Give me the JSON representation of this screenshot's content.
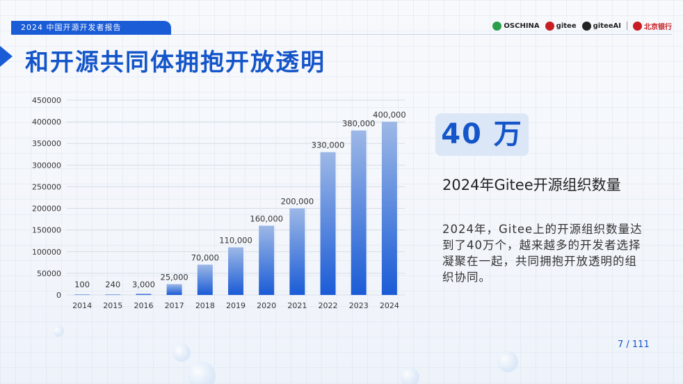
{
  "header": {
    "report_tag": "2024 中国开源开发者报告",
    "logos": [
      {
        "name": "OSCHINA",
        "icon": "oschina-logo",
        "color": "#2b9e4a"
      },
      {
        "name": "gitee",
        "icon": "gitee-logo",
        "color": "#c71d23"
      },
      {
        "name": "giteeAI",
        "icon": "gitee-ai-logo",
        "color": "#222222"
      },
      {
        "name": "北京银行",
        "icon": "bank-of-beijing-logo",
        "color": "#c71d23"
      }
    ]
  },
  "page": {
    "title": "和开源共同体拥抱开放透明",
    "highlight_value": "40 万",
    "subtitle": "2024年Gitee开源组织数量",
    "description": "2024年，Gitee上的开源组织数量达到了40万个，越来越多的开发者选择凝聚在一起，共同拥抱开放透明的组织协同。",
    "page_number": "7 / 111"
  },
  "colors": {
    "accent": "#1455c9",
    "bar_top": "#9db8e6",
    "bar_bottom": "#1a5bd6"
  },
  "chart_data": {
    "type": "bar",
    "categories": [
      "2014",
      "2015",
      "2016",
      "2017",
      "2018",
      "2019",
      "2020",
      "2021",
      "2022",
      "2023",
      "2024"
    ],
    "values": [
      100,
      240,
      3000,
      25000,
      70000,
      110000,
      160000,
      200000,
      330000,
      380000,
      400000
    ],
    "data_labels": [
      "100",
      "240",
      "3,000",
      "25,000",
      "70,000",
      "110,000",
      "160,000",
      "200,000",
      "330,000",
      "380,000",
      "400,000"
    ],
    "y_ticks": [
      0,
      50000,
      100000,
      150000,
      200000,
      250000,
      300000,
      350000,
      400000,
      450000
    ],
    "ylim": [
      0,
      450000
    ],
    "grid": true,
    "title": "",
    "xlabel": "",
    "ylabel": ""
  }
}
